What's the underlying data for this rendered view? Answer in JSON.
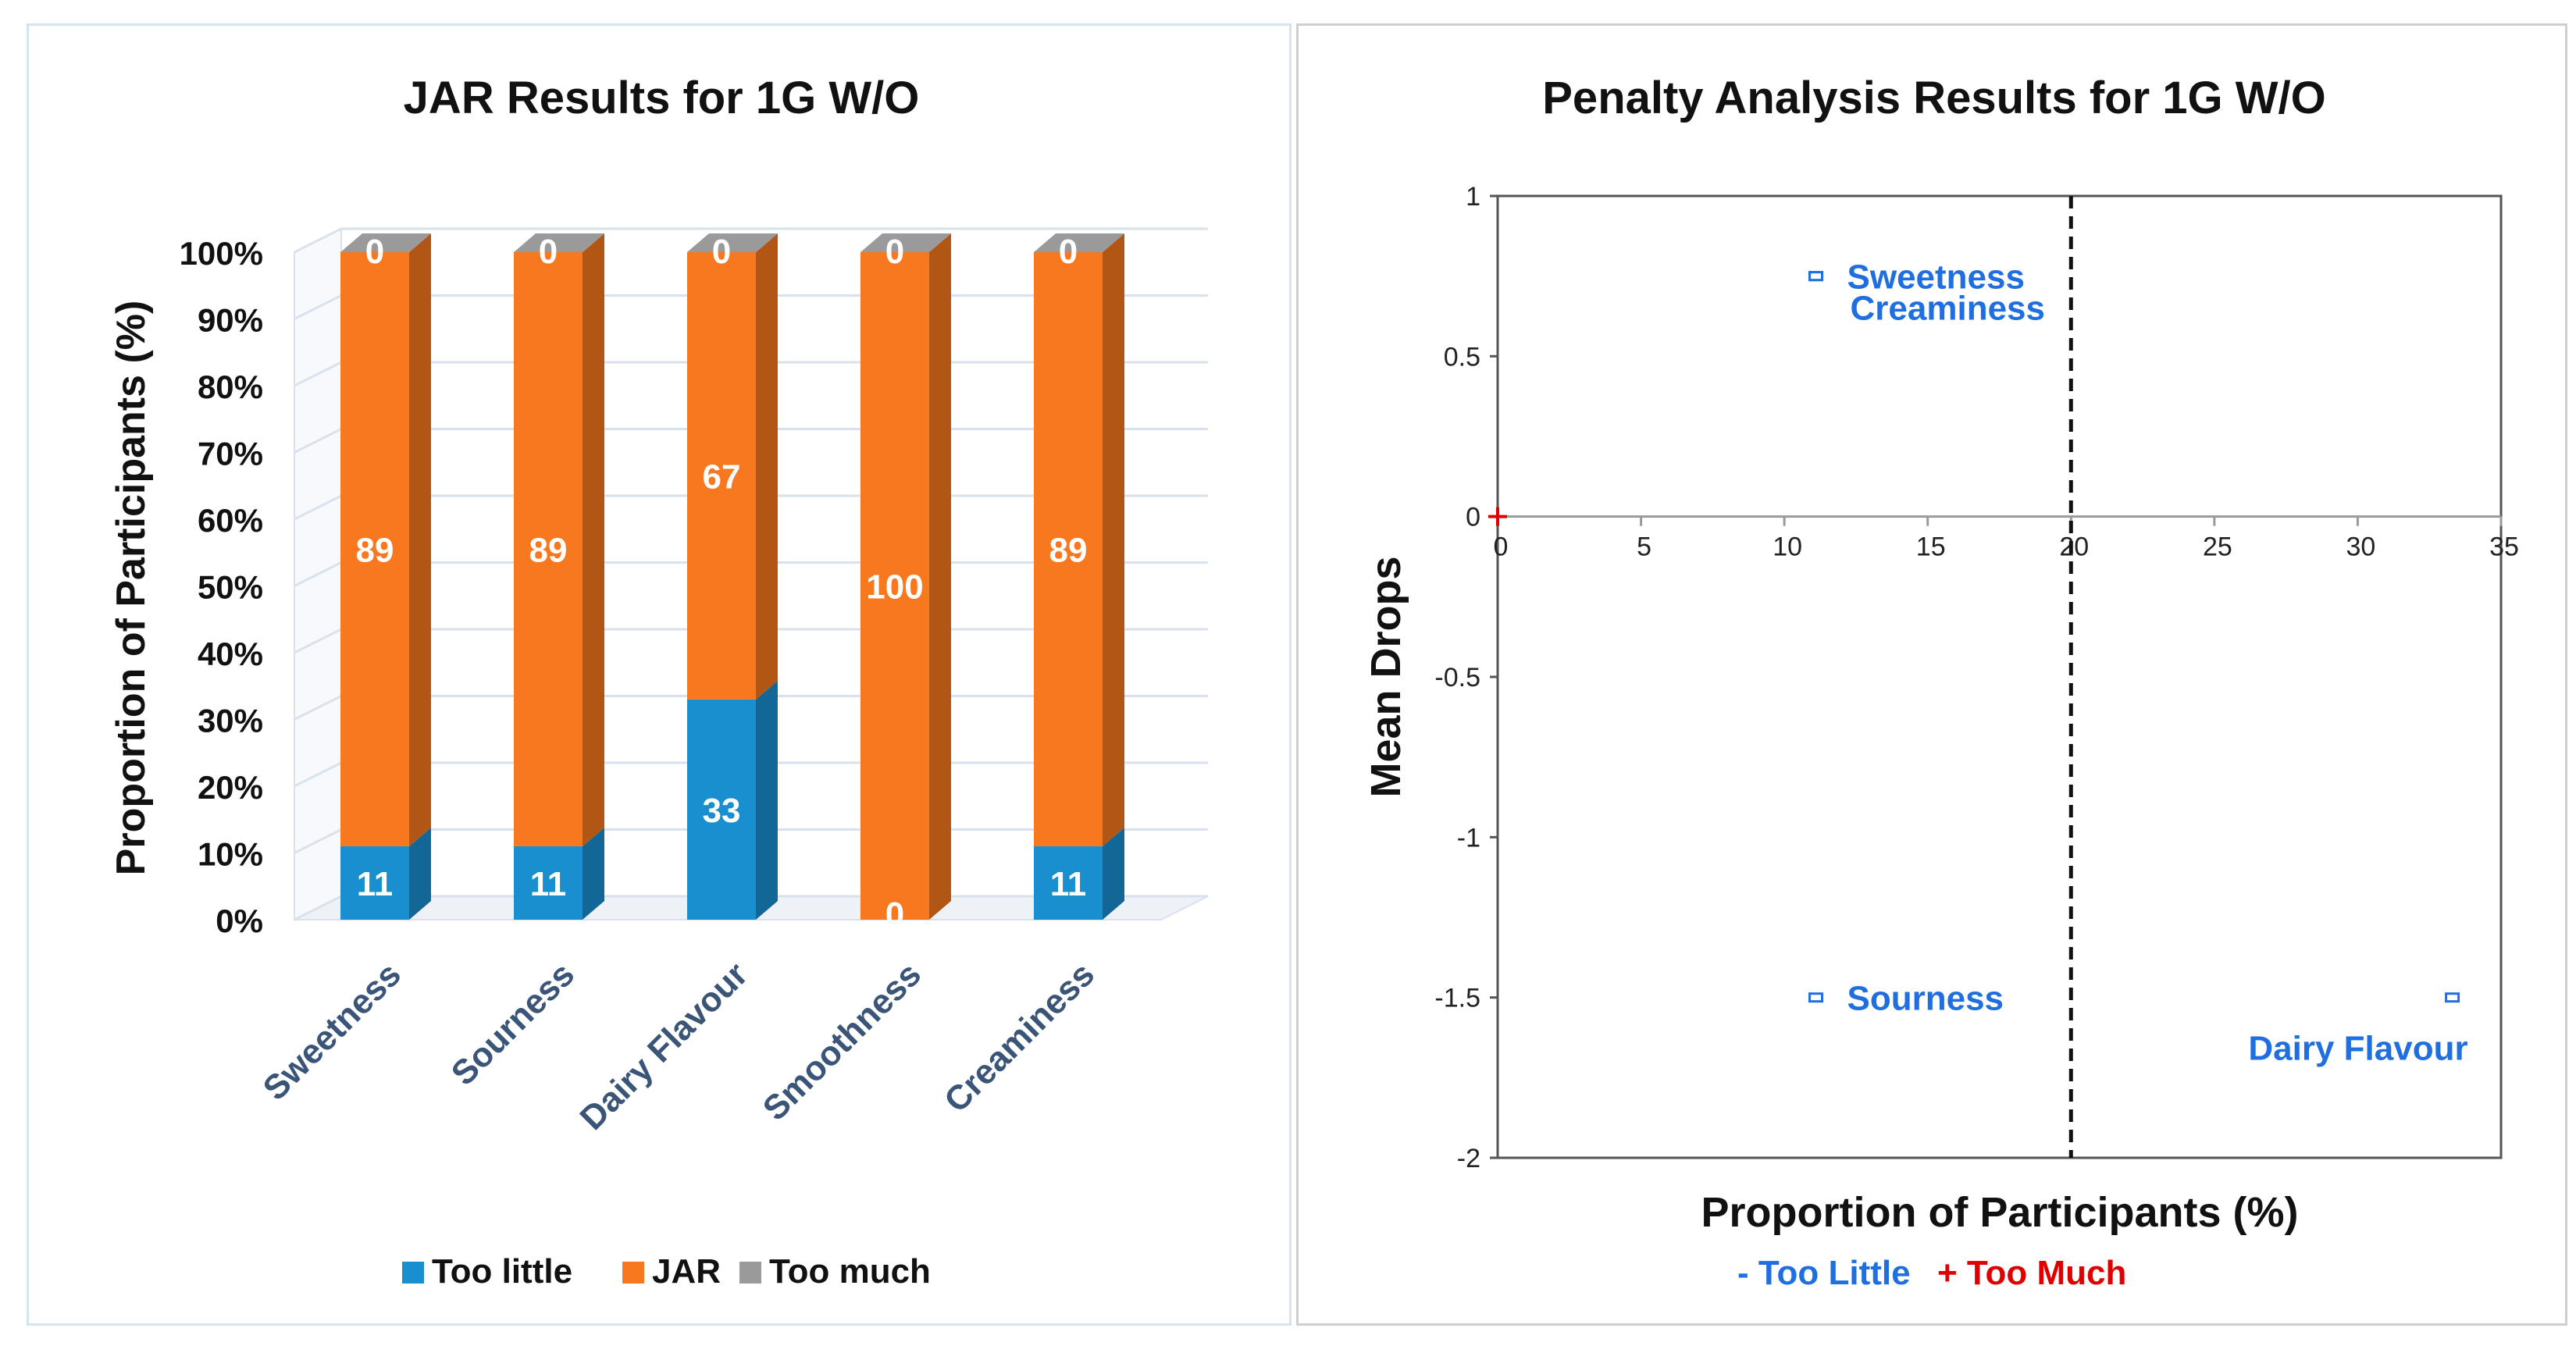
{
  "chart_data": [
    {
      "type": "bar",
      "stacked": true,
      "title": "JAR Results for 1G W/O",
      "xlabel": "",
      "ylabel": "Proportion of Participants (%)",
      "ylim": [
        0,
        100
      ],
      "yticks": [
        "0%",
        "10%",
        "20%",
        "30%",
        "40%",
        "50%",
        "60%",
        "70%",
        "80%",
        "90%",
        "100%"
      ],
      "categories": [
        "Sweetness",
        "Sourness",
        "Dairy Flavour",
        "Smoothness",
        "Creaminess"
      ],
      "series": [
        {
          "name": "Too little",
          "color": "#1a8fd0",
          "values": [
            11,
            11,
            33,
            0,
            11
          ]
        },
        {
          "name": "JAR",
          "color": "#f7781e",
          "values": [
            89,
            89,
            67,
            100,
            89
          ]
        },
        {
          "name": "Too much",
          "color": "#9a9a9a",
          "values": [
            0,
            0,
            0,
            0,
            0
          ]
        }
      ],
      "legend": [
        "Too little",
        "JAR",
        "Too much"
      ],
      "legend_position": "bottom",
      "grid": true
    },
    {
      "type": "scatter",
      "title": "Penalty Analysis Results for 1G W/O",
      "xlabel": "Proportion of Participants (%)",
      "ylabel": "Mean Drops",
      "xlim": [
        0,
        35
      ],
      "ylim": [
        -2,
        1
      ],
      "xticks": [
        "0",
        "5",
        "10",
        "15",
        "20",
        "25",
        "30",
        "35"
      ],
      "yticks": [
        "1",
        "0.5",
        "0",
        "-0.5",
        "-1",
        "-1.5",
        "-2"
      ],
      "threshold_x": 20,
      "points": [
        {
          "label": "Sweetness",
          "x": 11.1,
          "y": 0.75,
          "color": "#1f6fe0"
        },
        {
          "label": "Creaminess",
          "x": 11.1,
          "y": 0.75,
          "color": "#1f6fe0"
        },
        {
          "label": "Sourness",
          "x": 11.1,
          "y": -1.5,
          "color": "#1f6fe0"
        },
        {
          "label": "Dairy Flavour",
          "x": 33.3,
          "y": -1.5,
          "color": "#1f6fe0"
        }
      ],
      "origin_marker_color": "#e00000",
      "footnote": {
        "minus": "- Too Little",
        "plus": "+ Too Much",
        "minus_color": "#1f6fe0",
        "plus_color": "#e00000"
      }
    }
  ]
}
